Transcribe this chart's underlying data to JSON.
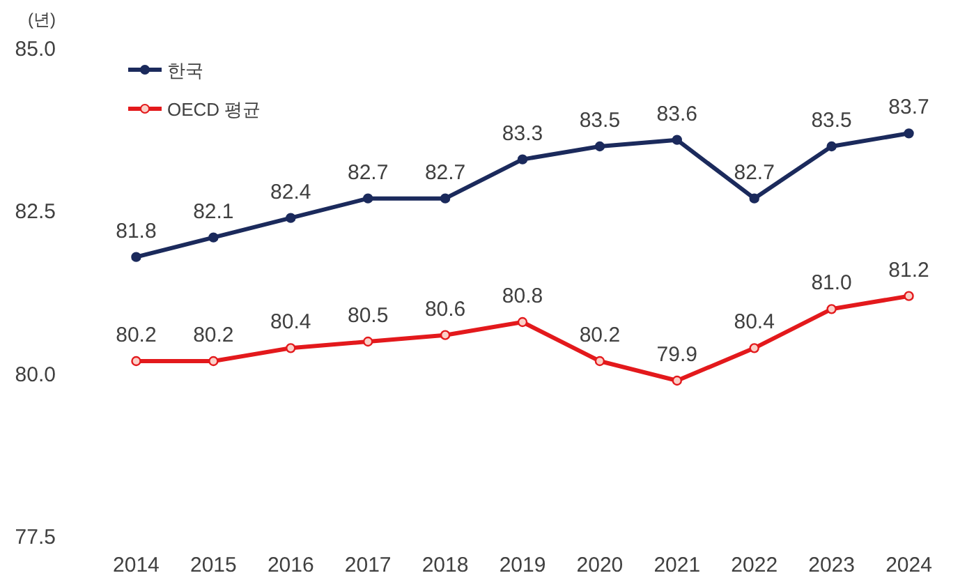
{
  "chart_data": {
    "type": "line",
    "ylabel": "(년)",
    "categories": [
      "2014",
      "2015",
      "2016",
      "2017",
      "2018",
      "2019",
      "2020",
      "2021",
      "2022",
      "2023",
      "2024"
    ],
    "series": [
      {
        "name": "한국",
        "color": "#1b2a5c",
        "values": [
          81.8,
          82.1,
          82.4,
          82.7,
          82.7,
          83.3,
          83.5,
          83.6,
          82.7,
          83.5,
          83.7
        ],
        "value_labels": [
          "81.8",
          "82.1",
          "82.4",
          "82.7",
          "82.7",
          "83.3",
          "83.5",
          "83.6",
          "82.7",
          "83.5",
          "83.7"
        ]
      },
      {
        "name": "OECD 평균",
        "color": "#e3191c",
        "values": [
          80.2,
          80.2,
          80.4,
          80.5,
          80.6,
          80.8,
          80.2,
          79.9,
          80.4,
          81.0,
          81.2
        ],
        "value_labels": [
          "80.2",
          "80.2",
          "80.4",
          "80.5",
          "80.6",
          "80.8",
          "80.2",
          "79.9",
          "80.4",
          "81.0",
          "81.2"
        ]
      }
    ],
    "ylim": [
      77.5,
      85
    ],
    "yticks": [
      {
        "value": 77.5,
        "label": "77.5"
      },
      {
        "value": 80,
        "label": "80.0"
      },
      {
        "value": 82.5,
        "label": "82.5"
      },
      {
        "value": 85,
        "label": "85.0"
      }
    ],
    "grid": false,
    "legend": "top left",
    "marker": "circle",
    "line_style": "solid"
  }
}
